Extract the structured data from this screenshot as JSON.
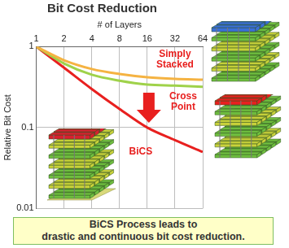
{
  "chart_data": {
    "type": "line",
    "title": "Bit Cost Reduction",
    "x_label": "# of Layers",
    "y_label": "Relative Bit Cost",
    "x": [
      1,
      2,
      4,
      8,
      16,
      32,
      64
    ],
    "series": [
      {
        "name": "Simply Stacked",
        "color": "#f5b342",
        "values": [
          1,
          0.68,
          0.53,
          0.46,
          0.42,
          0.4,
          0.39
        ]
      },
      {
        "name": "Cross Point",
        "color": "#9fd24a",
        "values": [
          1,
          0.62,
          0.45,
          0.38,
          0.34,
          0.33,
          0.32
        ]
      },
      {
        "name": "BiCS",
        "color": "#e8201f",
        "values": [
          1,
          0.55,
          0.3,
          0.17,
          0.1,
          0.07,
          0.05
        ]
      }
    ],
    "xlim": [
      1,
      64
    ],
    "xticks": [
      1,
      2,
      4,
      8,
      16,
      32,
      64
    ],
    "ylim": [
      0.01,
      1
    ],
    "yticks": [
      0.01,
      0.1,
      1
    ],
    "log": true,
    "grid": true,
    "footer": [
      "BiCS Process leads to",
      "drastic and continuous bit cost reduction."
    ]
  }
}
